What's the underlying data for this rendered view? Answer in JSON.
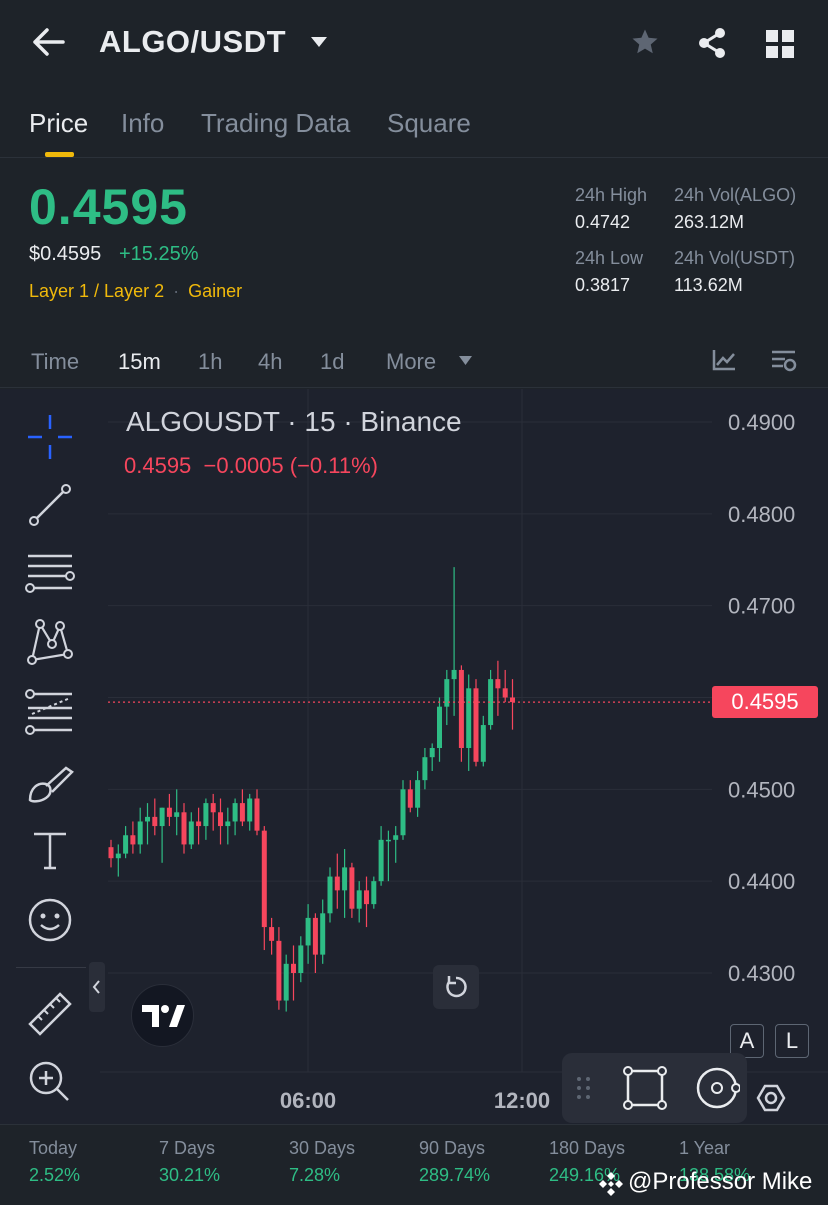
{
  "header": {
    "pair": "ALGO/USDT",
    "icons": [
      "back-arrow-icon",
      "dropdown-caret-icon",
      "star-icon",
      "share-icon",
      "grid-icon"
    ]
  },
  "tabs": [
    {
      "label": "Price",
      "active": true
    },
    {
      "label": "Info",
      "active": false
    },
    {
      "label": "Trading Data",
      "active": false
    },
    {
      "label": "Square",
      "active": false
    }
  ],
  "ticker": {
    "price": "0.4595",
    "usd_price": "$0.4595",
    "change": "+15.25%",
    "tags": [
      "Layer 1 / Layer 2",
      "Gainer"
    ],
    "high_label": "24h High",
    "high_value": "0.4742",
    "low_label": "24h Low",
    "low_value": "0.3817",
    "vol_base_label": "24h Vol(ALGO)",
    "vol_base_value": "263.12M",
    "vol_quote_label": "24h Vol(USDT)",
    "vol_quote_value": "113.62M"
  },
  "intervals": [
    {
      "label": "Time",
      "active": false
    },
    {
      "label": "15m",
      "active": true
    },
    {
      "label": "1h",
      "active": false
    },
    {
      "label": "4h",
      "active": false
    },
    {
      "label": "1d",
      "active": false
    },
    {
      "label": "More",
      "active": false
    }
  ],
  "chart": {
    "symbol_line": "ALGOUSDT · 15 · Binance",
    "ohlc_line": "0.4595  −0.0005 (−0.11%)",
    "current_price_tag": "0.4595",
    "scale_buttons": [
      "A",
      "L"
    ],
    "colors": {
      "up": "#2ebd85",
      "down": "#f6465d",
      "bg": "#1e222d"
    }
  },
  "chart_data": {
    "type": "candlestick",
    "title": "ALGOUSDT · 15 · Binance",
    "y_ticks": [
      "0.4900",
      "0.4800",
      "0.4700",
      "0.4600",
      "0.4500",
      "0.4400",
      "0.4300"
    ],
    "x_ticks": [
      "06:00",
      "12:00"
    ],
    "ylim": [
      0.425,
      0.4935
    ],
    "last_price": 0.4595,
    "candles": [
      {
        "o": 0.4437,
        "h": 0.4445,
        "l": 0.4415,
        "c": 0.4425
      },
      {
        "o": 0.4425,
        "h": 0.444,
        "l": 0.4405,
        "c": 0.443
      },
      {
        "o": 0.443,
        "h": 0.446,
        "l": 0.4425,
        "c": 0.445
      },
      {
        "o": 0.445,
        "h": 0.4465,
        "l": 0.443,
        "c": 0.444
      },
      {
        "o": 0.444,
        "h": 0.448,
        "l": 0.443,
        "c": 0.4465
      },
      {
        "o": 0.4465,
        "h": 0.4485,
        "l": 0.444,
        "c": 0.447
      },
      {
        "o": 0.447,
        "h": 0.449,
        "l": 0.445,
        "c": 0.446
      },
      {
        "o": 0.446,
        "h": 0.448,
        "l": 0.442,
        "c": 0.448
      },
      {
        "o": 0.448,
        "h": 0.4495,
        "l": 0.446,
        "c": 0.447
      },
      {
        "o": 0.447,
        "h": 0.45,
        "l": 0.445,
        "c": 0.4475
      },
      {
        "o": 0.4475,
        "h": 0.4485,
        "l": 0.443,
        "c": 0.444
      },
      {
        "o": 0.444,
        "h": 0.4475,
        "l": 0.4435,
        "c": 0.4465
      },
      {
        "o": 0.4465,
        "h": 0.448,
        "l": 0.444,
        "c": 0.446
      },
      {
        "o": 0.446,
        "h": 0.449,
        "l": 0.4445,
        "c": 0.4485
      },
      {
        "o": 0.4485,
        "h": 0.4495,
        "l": 0.4455,
        "c": 0.4475
      },
      {
        "o": 0.4475,
        "h": 0.449,
        "l": 0.444,
        "c": 0.446
      },
      {
        "o": 0.446,
        "h": 0.448,
        "l": 0.444,
        "c": 0.4465
      },
      {
        "o": 0.4465,
        "h": 0.449,
        "l": 0.445,
        "c": 0.4485
      },
      {
        "o": 0.4485,
        "h": 0.45,
        "l": 0.446,
        "c": 0.4465
      },
      {
        "o": 0.4465,
        "h": 0.4495,
        "l": 0.4455,
        "c": 0.449
      },
      {
        "o": 0.449,
        "h": 0.45,
        "l": 0.445,
        "c": 0.4455
      },
      {
        "o": 0.4455,
        "h": 0.446,
        "l": 0.4325,
        "c": 0.435
      },
      {
        "o": 0.435,
        "h": 0.436,
        "l": 0.432,
        "c": 0.4335
      },
      {
        "o": 0.4335,
        "h": 0.435,
        "l": 0.426,
        "c": 0.427
      },
      {
        "o": 0.427,
        "h": 0.432,
        "l": 0.4258,
        "c": 0.431
      },
      {
        "o": 0.431,
        "h": 0.433,
        "l": 0.427,
        "c": 0.43
      },
      {
        "o": 0.43,
        "h": 0.434,
        "l": 0.429,
        "c": 0.433
      },
      {
        "o": 0.433,
        "h": 0.4375,
        "l": 0.431,
        "c": 0.436
      },
      {
        "o": 0.436,
        "h": 0.4365,
        "l": 0.43,
        "c": 0.432
      },
      {
        "o": 0.432,
        "h": 0.438,
        "l": 0.431,
        "c": 0.4365
      },
      {
        "o": 0.4365,
        "h": 0.4415,
        "l": 0.4355,
        "c": 0.4405
      },
      {
        "o": 0.4405,
        "h": 0.443,
        "l": 0.437,
        "c": 0.439
      },
      {
        "o": 0.439,
        "h": 0.4435,
        "l": 0.436,
        "c": 0.4415
      },
      {
        "o": 0.4415,
        "h": 0.442,
        "l": 0.436,
        "c": 0.437
      },
      {
        "o": 0.437,
        "h": 0.44,
        "l": 0.4355,
        "c": 0.439
      },
      {
        "o": 0.439,
        "h": 0.4405,
        "l": 0.435,
        "c": 0.4375
      },
      {
        "o": 0.4375,
        "h": 0.4405,
        "l": 0.437,
        "c": 0.44
      },
      {
        "o": 0.44,
        "h": 0.446,
        "l": 0.4395,
        "c": 0.4445
      },
      {
        "o": 0.4445,
        "h": 0.4455,
        "l": 0.44,
        "c": 0.4445
      },
      {
        "o": 0.4445,
        "h": 0.446,
        "l": 0.442,
        "c": 0.445
      },
      {
        "o": 0.445,
        "h": 0.451,
        "l": 0.4445,
        "c": 0.45
      },
      {
        "o": 0.45,
        "h": 0.451,
        "l": 0.4475,
        "c": 0.448
      },
      {
        "o": 0.448,
        "h": 0.452,
        "l": 0.447,
        "c": 0.451
      },
      {
        "o": 0.451,
        "h": 0.4545,
        "l": 0.45,
        "c": 0.4535
      },
      {
        "o": 0.4535,
        "h": 0.455,
        "l": 0.452,
        "c": 0.4545
      },
      {
        "o": 0.4545,
        "h": 0.46,
        "l": 0.453,
        "c": 0.459
      },
      {
        "o": 0.459,
        "h": 0.463,
        "l": 0.457,
        "c": 0.462
      },
      {
        "o": 0.462,
        "h": 0.4742,
        "l": 0.458,
        "c": 0.463
      },
      {
        "o": 0.463,
        "h": 0.4635,
        "l": 0.453,
        "c": 0.4545
      },
      {
        "o": 0.4545,
        "h": 0.4625,
        "l": 0.452,
        "c": 0.461
      },
      {
        "o": 0.461,
        "h": 0.462,
        "l": 0.4525,
        "c": 0.453
      },
      {
        "o": 0.453,
        "h": 0.458,
        "l": 0.4525,
        "c": 0.457
      },
      {
        "o": 0.457,
        "h": 0.463,
        "l": 0.4565,
        "c": 0.462
      },
      {
        "o": 0.462,
        "h": 0.464,
        "l": 0.458,
        "c": 0.461
      },
      {
        "o": 0.461,
        "h": 0.463,
        "l": 0.4595,
        "c": 0.46
      },
      {
        "o": 0.46,
        "h": 0.462,
        "l": 0.4565,
        "c": 0.4595
      }
    ]
  },
  "performance": [
    {
      "label": "Today",
      "value": "2.52%"
    },
    {
      "label": "7 Days",
      "value": "30.21%"
    },
    {
      "label": "30 Days",
      "value": "7.28%"
    },
    {
      "label": "90 Days",
      "value": "289.74%"
    },
    {
      "label": "180 Days",
      "value": "249.16%"
    },
    {
      "label": "1 Year",
      "value": "138.58%"
    }
  ],
  "watermark": "@Professor Mike"
}
